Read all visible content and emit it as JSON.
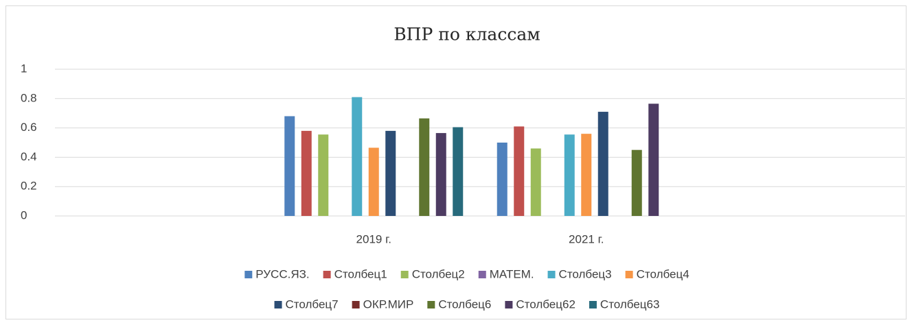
{
  "chart_data": {
    "type": "bar",
    "title": "ВПР по классам",
    "categories": [
      null,
      "2019 г.",
      "2021 г.",
      null
    ],
    "series": [
      {
        "name": "РУСС.ЯЗ.",
        "color": "#4f81bd",
        "values": [
          null,
          0.68,
          0.5,
          null
        ]
      },
      {
        "name": "Столбец1",
        "color": "#c0504d",
        "values": [
          null,
          0.58,
          0.61,
          null
        ]
      },
      {
        "name": "Столбец2",
        "color": "#9bbb59",
        "values": [
          null,
          0.555,
          0.46,
          null
        ]
      },
      {
        "name": "МАТЕМ.",
        "color": "#8064a2",
        "values": [
          null,
          null,
          null,
          null
        ]
      },
      {
        "name": "Столбец3",
        "color": "#4bacc6",
        "values": [
          null,
          0.81,
          0.555,
          null
        ]
      },
      {
        "name": "Столбец4",
        "color": "#f79646",
        "values": [
          null,
          0.465,
          0.56,
          null
        ]
      },
      {
        "name": "Столбец7",
        "color": "#2c4d75",
        "values": [
          null,
          0.58,
          0.71,
          null
        ]
      },
      {
        "name": "ОКР.МИР",
        "color": "#772c2a",
        "values": [
          null,
          null,
          null,
          null
        ]
      },
      {
        "name": "Столбец6",
        "color": "#5f7530",
        "values": [
          null,
          0.665,
          0.45,
          null
        ]
      },
      {
        "name": "Столбец62",
        "color": "#4d3b62",
        "values": [
          null,
          0.565,
          0.765,
          null
        ]
      },
      {
        "name": "Столбец63",
        "color": "#276a7c",
        "values": [
          null,
          0.605,
          null,
          null
        ]
      }
    ],
    "ylim": [
      0,
      1
    ],
    "yticks": [
      0,
      0.2,
      0.4,
      0.6,
      0.8,
      1
    ],
    "grid": true,
    "legend": "bottom"
  }
}
